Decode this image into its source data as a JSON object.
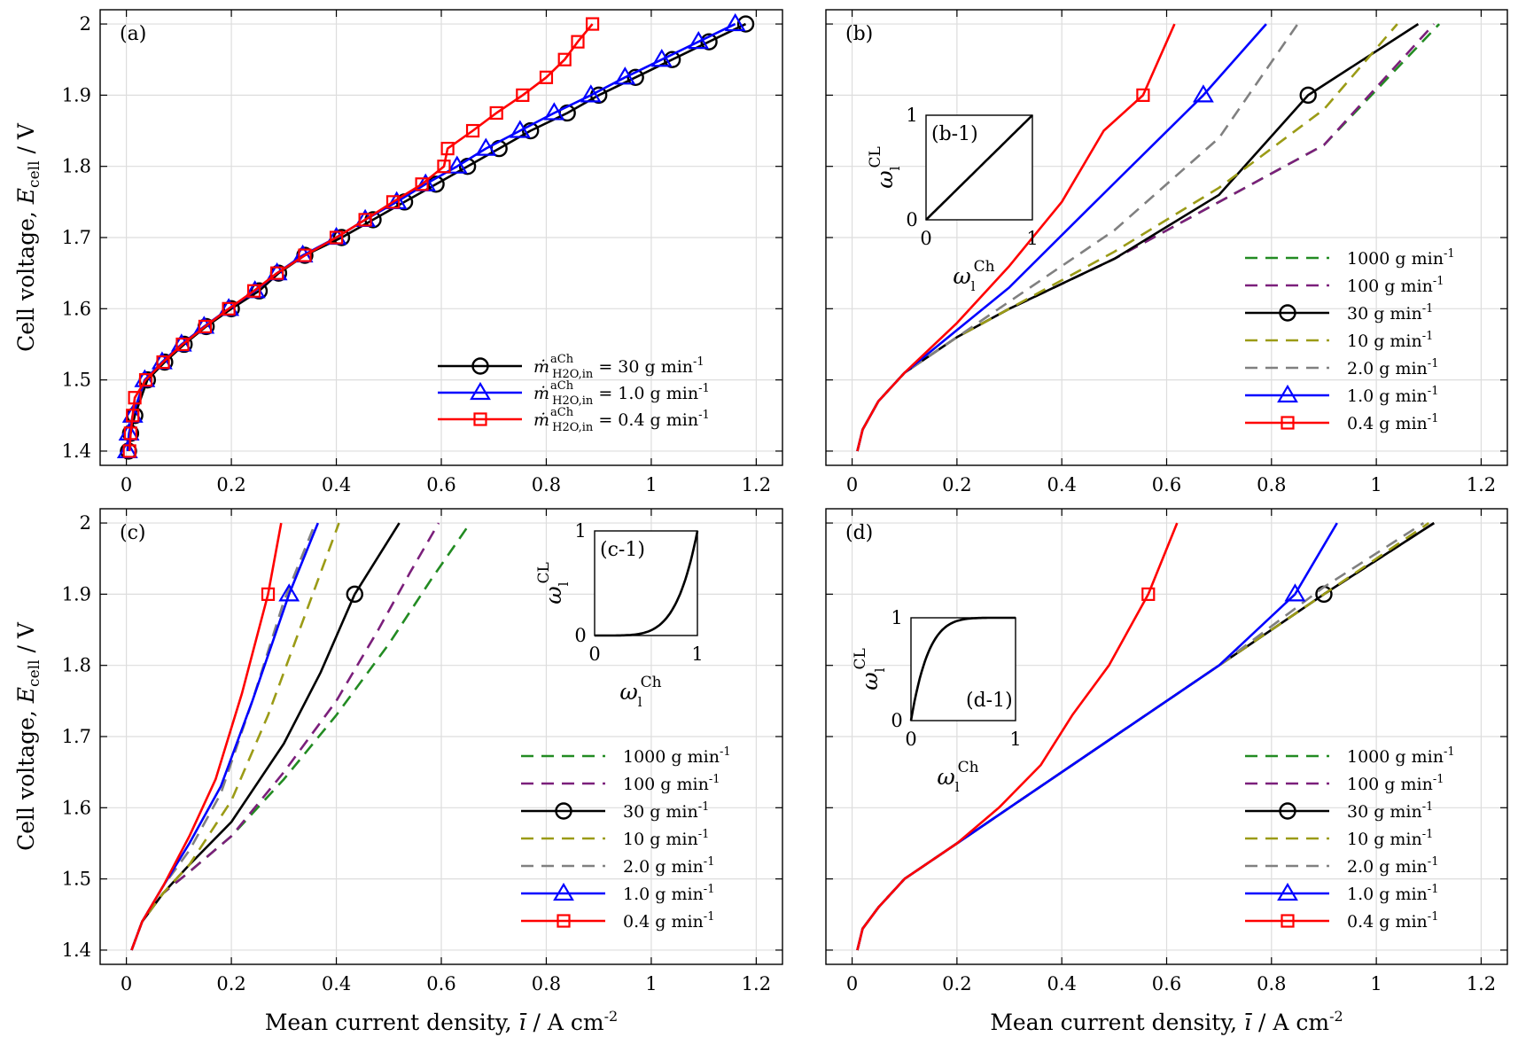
{
  "figure": {
    "xlabel": "Mean current density, ī / A cm⁻²",
    "ylabel": "Cell voltage, Ecell / V"
  },
  "colors": {
    "30": "#000000",
    "1.0": "#0000ff",
    "0.4": "#ff0000",
    "1000": "#228b22",
    "100": "#7b1f7b",
    "10": "#9b9b16",
    "2.0": "#808080",
    "grid": "#dddddd"
  },
  "chart_data": [
    {
      "panel": "(a)",
      "type": "line",
      "xlim": [
        -0.05,
        1.25
      ],
      "ylim": [
        1.38,
        2.02
      ],
      "xticks": [
        0,
        0.2,
        0.4,
        0.6,
        0.8,
        1,
        1.2
      ],
      "yticks": [
        1.4,
        1.5,
        1.6,
        1.7,
        1.8,
        1.9,
        2
      ],
      "xlabel": "",
      "ylabel": "Cell voltage, Ecell / V",
      "legend_position": "bottom-right",
      "series": [
        {
          "name": "30 g min-1",
          "legend": "ṁ aCh H2O,in = 30 g min-1",
          "color": "#000000",
          "marker": "circle",
          "marker_every": 1,
          "x": [
            0.004,
            0.008,
            0.016,
            0.04,
            0.073,
            0.11,
            0.152,
            0.2,
            0.253,
            0.29,
            0.34,
            0.41,
            0.47,
            0.53,
            0.59,
            0.65,
            0.71,
            0.77,
            0.84,
            0.9,
            0.97,
            1.04,
            1.11,
            1.18
          ],
          "y": [
            1.4,
            1.425,
            1.45,
            1.5,
            1.525,
            1.55,
            1.575,
            1.6,
            1.625,
            1.65,
            1.675,
            1.7,
            1.725,
            1.75,
            1.775,
            1.8,
            1.825,
            1.85,
            1.875,
            1.9,
            1.925,
            1.95,
            1.975,
            2.0
          ]
        },
        {
          "name": "1.0 g min-1",
          "legend": "ṁ aCh H2O,in = 1.0 g min-1",
          "color": "#0000ff",
          "marker": "triangle",
          "marker_every": 1,
          "x": [
            0.002,
            0.005,
            0.012,
            0.035,
            0.068,
            0.105,
            0.148,
            0.195,
            0.245,
            0.287,
            0.336,
            0.4,
            0.455,
            0.515,
            0.57,
            0.63,
            0.685,
            0.75,
            0.815,
            0.885,
            0.95,
            1.02,
            1.09,
            1.16
          ],
          "y": [
            1.4,
            1.425,
            1.45,
            1.5,
            1.525,
            1.55,
            1.575,
            1.6,
            1.625,
            1.65,
            1.675,
            1.7,
            1.725,
            1.75,
            1.775,
            1.8,
            1.825,
            1.85,
            1.875,
            1.9,
            1.925,
            1.95,
            1.975,
            2.0
          ]
        },
        {
          "name": "0.4 g min-1",
          "legend": "ṁ aCh H2O,in = 0.4 g min-1",
          "color": "#ff0000",
          "marker": "square",
          "marker_every": 1,
          "x": [
            0.006,
            0.008,
            0.012,
            0.016,
            0.037,
            0.07,
            0.107,
            0.15,
            0.195,
            0.243,
            0.287,
            0.34,
            0.4,
            0.455,
            0.508,
            0.563,
            0.605,
            0.612,
            0.66,
            0.705,
            0.755,
            0.8,
            0.835,
            0.86,
            0.888
          ],
          "y": [
            1.4,
            1.425,
            1.45,
            1.475,
            1.5,
            1.525,
            1.55,
            1.575,
            1.6,
            1.625,
            1.65,
            1.675,
            1.7,
            1.725,
            1.75,
            1.775,
            1.8,
            1.825,
            1.85,
            1.875,
            1.9,
            1.925,
            1.95,
            1.975,
            2.0
          ]
        }
      ]
    },
    {
      "panel": "(b)",
      "type": "line",
      "xlim": [
        -0.05,
        1.25
      ],
      "ylim": [
        1.38,
        2.02
      ],
      "xticks": [
        0,
        0.2,
        0.4,
        0.6,
        0.8,
        1,
        1.2
      ],
      "yticks": [
        1.4,
        1.5,
        1.6,
        1.7,
        1.8,
        1.9,
        2
      ],
      "inset": {
        "label": "(b-1)",
        "xlabel": "ωl Ch",
        "ylabel": "ωl CL",
        "shape": "linear",
        "ticks": [
          "0",
          "1"
        ]
      },
      "series": [
        {
          "name": "1000 g min-1",
          "color": "#228b22",
          "style": "dashed",
          "x": [
            0.01,
            0.02,
            0.05,
            0.1,
            0.2,
            0.3,
            0.5,
            0.7,
            0.9,
            1.12
          ],
          "y": [
            1.4,
            1.43,
            1.47,
            1.51,
            1.56,
            1.6,
            1.67,
            1.75,
            1.83,
            2.0
          ]
        },
        {
          "name": "100 g min-1",
          "color": "#7b1f7b",
          "style": "dashed",
          "x": [
            0.01,
            0.02,
            0.05,
            0.1,
            0.2,
            0.3,
            0.5,
            0.7,
            0.9,
            1.11
          ],
          "y": [
            1.4,
            1.43,
            1.47,
            1.51,
            1.56,
            1.6,
            1.67,
            1.75,
            1.83,
            2.0
          ]
        },
        {
          "name": "30 g min-1",
          "color": "#000000",
          "style": "solid",
          "marker": "circle",
          "marker_points": [
            [
              0.87,
              1.9
            ]
          ],
          "x": [
            0.01,
            0.02,
            0.05,
            0.1,
            0.2,
            0.3,
            0.5,
            0.7,
            0.87,
            1.08
          ],
          "y": [
            1.4,
            1.43,
            1.47,
            1.51,
            1.56,
            1.6,
            1.67,
            1.76,
            1.9,
            2.0
          ]
        },
        {
          "name": "10 g min-1",
          "color": "#9b9b16",
          "style": "dashed",
          "x": [
            0.01,
            0.02,
            0.05,
            0.1,
            0.2,
            0.3,
            0.5,
            0.7,
            0.9,
            1.04
          ],
          "y": [
            1.4,
            1.43,
            1.47,
            1.51,
            1.56,
            1.6,
            1.68,
            1.77,
            1.88,
            2.0
          ]
        },
        {
          "name": "2.0 g min-1",
          "color": "#808080",
          "style": "dashed",
          "x": [
            0.01,
            0.02,
            0.05,
            0.1,
            0.2,
            0.3,
            0.5,
            0.7,
            0.85
          ],
          "y": [
            1.4,
            1.43,
            1.47,
            1.51,
            1.56,
            1.61,
            1.71,
            1.84,
            2.0
          ]
        },
        {
          "name": "1.0 g min-1",
          "color": "#0000ff",
          "style": "solid",
          "marker": "triangle",
          "marker_points": [
            [
              0.67,
              1.9
            ]
          ],
          "x": [
            0.01,
            0.02,
            0.05,
            0.1,
            0.2,
            0.3,
            0.45,
            0.67,
            0.79
          ],
          "y": [
            1.4,
            1.43,
            1.47,
            1.51,
            1.57,
            1.63,
            1.74,
            1.9,
            2.0
          ]
        },
        {
          "name": "0.4 g min-1",
          "color": "#ff0000",
          "style": "solid",
          "marker": "square",
          "marker_points": [
            [
              0.555,
              1.9
            ]
          ],
          "x": [
            0.01,
            0.02,
            0.05,
            0.1,
            0.2,
            0.3,
            0.4,
            0.48,
            0.555,
            0.615
          ],
          "y": [
            1.4,
            1.43,
            1.47,
            1.51,
            1.58,
            1.66,
            1.75,
            1.85,
            1.9,
            2.0
          ]
        }
      ]
    },
    {
      "panel": "(c)",
      "type": "line",
      "xlim": [
        -0.05,
        1.25
      ],
      "ylim": [
        1.38,
        2.02
      ],
      "xticks": [
        0,
        0.2,
        0.4,
        0.6,
        0.8,
        1,
        1.2
      ],
      "yticks": [
        1.4,
        1.5,
        1.6,
        1.7,
        1.8,
        1.9,
        2
      ],
      "xlabel": "Mean current density, ī / A cm⁻²",
      "ylabel": "Cell voltage, Ecell / V",
      "inset": {
        "label": "(c-1)",
        "xlabel": "ωl Ch",
        "ylabel": "ωl CL",
        "shape": "convex",
        "ticks": [
          "0",
          "1"
        ]
      },
      "series": [
        {
          "name": "1000 g min-1",
          "color": "#228b22",
          "style": "dashed",
          "x": [
            0.01,
            0.03,
            0.07,
            0.12,
            0.2,
            0.3,
            0.4,
            0.5,
            0.58,
            0.655
          ],
          "y": [
            1.4,
            1.44,
            1.48,
            1.51,
            1.56,
            1.64,
            1.73,
            1.83,
            1.92,
            2.0
          ]
        },
        {
          "name": "100 g min-1",
          "color": "#7b1f7b",
          "style": "dashed",
          "x": [
            0.01,
            0.03,
            0.07,
            0.12,
            0.2,
            0.3,
            0.4,
            0.48,
            0.54,
            0.595
          ],
          "y": [
            1.4,
            1.44,
            1.48,
            1.51,
            1.56,
            1.65,
            1.75,
            1.85,
            1.93,
            2.0
          ]
        },
        {
          "name": "30 g min-1",
          "color": "#000000",
          "style": "solid",
          "marker": "circle",
          "marker_points": [
            [
              0.435,
              1.9
            ]
          ],
          "x": [
            0.01,
            0.03,
            0.07,
            0.12,
            0.2,
            0.3,
            0.37,
            0.435,
            0.52
          ],
          "y": [
            1.4,
            1.44,
            1.48,
            1.52,
            1.58,
            1.69,
            1.79,
            1.9,
            2.0
          ]
        },
        {
          "name": "10 g min-1",
          "color": "#9b9b16",
          "style": "dashed",
          "x": [
            0.01,
            0.03,
            0.07,
            0.12,
            0.2,
            0.27,
            0.34,
            0.405
          ],
          "y": [
            1.4,
            1.44,
            1.48,
            1.52,
            1.61,
            1.73,
            1.87,
            2.0
          ]
        },
        {
          "name": "2.0 g min-1",
          "color": "#808080",
          "style": "dashed",
          "x": [
            0.01,
            0.03,
            0.07,
            0.12,
            0.18,
            0.24,
            0.3,
            0.36
          ],
          "y": [
            1.4,
            1.44,
            1.49,
            1.54,
            1.62,
            1.75,
            1.89,
            2.0
          ]
        },
        {
          "name": "1.0 g min-1",
          "color": "#0000ff",
          "style": "solid",
          "marker": "triangle",
          "marker_points": [
            [
              0.31,
              1.9
            ]
          ],
          "x": [
            0.01,
            0.03,
            0.07,
            0.12,
            0.18,
            0.24,
            0.31,
            0.365
          ],
          "y": [
            1.4,
            1.44,
            1.49,
            1.55,
            1.63,
            1.75,
            1.9,
            2.0
          ]
        },
        {
          "name": "0.4 g min-1",
          "color": "#ff0000",
          "style": "solid",
          "marker": "square",
          "marker_points": [
            [
              0.27,
              1.9
            ]
          ],
          "x": [
            0.01,
            0.03,
            0.07,
            0.12,
            0.17,
            0.22,
            0.27,
            0.295
          ],
          "y": [
            1.4,
            1.44,
            1.49,
            1.56,
            1.64,
            1.76,
            1.9,
            2.0
          ]
        }
      ]
    },
    {
      "panel": "(d)",
      "type": "line",
      "xlim": [
        -0.05,
        1.25
      ],
      "ylim": [
        1.38,
        2.02
      ],
      "xticks": [
        0,
        0.2,
        0.4,
        0.6,
        0.8,
        1,
        1.2
      ],
      "yticks": [
        1.4,
        1.5,
        1.6,
        1.7,
        1.8,
        1.9,
        2
      ],
      "xlabel": "Mean current density, ī / A cm⁻²",
      "inset": {
        "label": "(d-1)",
        "xlabel": "ωl Ch",
        "ylabel": "ωl CL",
        "shape": "concave",
        "ticks": [
          "0",
          "1"
        ]
      },
      "series": [
        {
          "name": "1000 g min-1",
          "color": "#228b22",
          "style": "dashed",
          "x": [
            0.01,
            0.02,
            0.05,
            0.1,
            0.2,
            0.3,
            0.5,
            0.7,
            0.9,
            1.11
          ],
          "y": [
            1.4,
            1.43,
            1.46,
            1.5,
            1.55,
            1.6,
            1.7,
            1.8,
            1.9,
            2.0
          ]
        },
        {
          "name": "100 g min-1",
          "color": "#7b1f7b",
          "style": "dashed",
          "x": [
            0.01,
            0.02,
            0.05,
            0.1,
            0.2,
            0.3,
            0.5,
            0.7,
            0.9,
            1.11
          ],
          "y": [
            1.4,
            1.43,
            1.46,
            1.5,
            1.55,
            1.6,
            1.7,
            1.8,
            1.9,
            2.0
          ]
        },
        {
          "name": "30 g min-1",
          "color": "#000000",
          "style": "solid",
          "marker": "circle",
          "marker_points": [
            [
              0.9,
              1.9
            ]
          ],
          "x": [
            0.01,
            0.02,
            0.05,
            0.1,
            0.2,
            0.3,
            0.5,
            0.7,
            0.9,
            1.11
          ],
          "y": [
            1.4,
            1.43,
            1.46,
            1.5,
            1.55,
            1.6,
            1.7,
            1.8,
            1.9,
            2.0
          ]
        },
        {
          "name": "10 g min-1",
          "color": "#9b9b16",
          "style": "dashed",
          "x": [
            0.01,
            0.02,
            0.05,
            0.1,
            0.2,
            0.3,
            0.5,
            0.7,
            0.9,
            1.1
          ],
          "y": [
            1.4,
            1.43,
            1.46,
            1.5,
            1.55,
            1.6,
            1.7,
            1.8,
            1.9,
            2.0
          ]
        },
        {
          "name": "2.0 g min-1",
          "color": "#808080",
          "style": "dashed",
          "x": [
            0.01,
            0.02,
            0.05,
            0.1,
            0.2,
            0.3,
            0.5,
            0.7,
            0.9,
            1.09
          ],
          "y": [
            1.4,
            1.43,
            1.46,
            1.5,
            1.55,
            1.6,
            1.7,
            1.8,
            1.91,
            2.0
          ]
        },
        {
          "name": "1.0 g min-1",
          "color": "#0000ff",
          "style": "solid",
          "marker": "triangle",
          "marker_points": [
            [
              0.845,
              1.9
            ]
          ],
          "x": [
            0.01,
            0.02,
            0.05,
            0.1,
            0.2,
            0.3,
            0.5,
            0.7,
            0.845,
            0.925
          ],
          "y": [
            1.4,
            1.43,
            1.46,
            1.5,
            1.55,
            1.6,
            1.7,
            1.8,
            1.9,
            2.0
          ]
        },
        {
          "name": "0.4 g min-1",
          "color": "#ff0000",
          "style": "solid",
          "marker": "square",
          "marker_points": [
            [
              0.565,
              1.9
            ]
          ],
          "x": [
            0.01,
            0.02,
            0.05,
            0.1,
            0.2,
            0.28,
            0.36,
            0.42,
            0.49,
            0.565,
            0.62
          ],
          "y": [
            1.4,
            1.43,
            1.46,
            1.5,
            1.55,
            1.6,
            1.66,
            1.73,
            1.8,
            1.9,
            2.0
          ]
        }
      ]
    }
  ]
}
